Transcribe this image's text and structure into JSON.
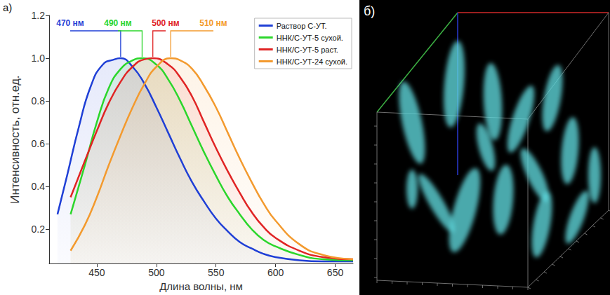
{
  "panel_labels": [
    "а)",
    "б)"
  ],
  "chart_data": {
    "type": "line",
    "x_label": "Длина волны, нм",
    "y_label": "Интенсивность, отн.ед.",
    "xlim": [
      410,
      665
    ],
    "ylim": [
      0.04,
      1.2
    ],
    "xticks": [
      450,
      500,
      550,
      600,
      650
    ],
    "yticks": [
      0.2,
      0.4,
      0.6,
      0.8,
      {
        "value": 1,
        "label": "1.0"
      },
      1.2
    ],
    "grid": false,
    "legend": "upper right",
    "series": [
      {
        "name": "Раствор С-УТ.",
        "color": "#1f3fd6",
        "peak_label": "470 нм",
        "x": [
          417,
          425,
          435,
          445,
          455,
          465,
          470,
          480,
          490,
          500,
          510,
          520,
          530,
          540,
          550,
          560,
          570,
          580,
          590,
          600,
          620,
          640,
          665
        ],
        "values": [
          0.27,
          0.45,
          0.68,
          0.87,
          0.97,
          0.995,
          1.0,
          0.96,
          0.88,
          0.77,
          0.65,
          0.53,
          0.42,
          0.33,
          0.25,
          0.19,
          0.14,
          0.11,
          0.085,
          0.07,
          0.055,
          0.05,
          0.05
        ]
      },
      {
        "name": "ННК/С-УТ-5 сухой.",
        "color": "#2bd62b",
        "peak_label": "490 нм",
        "x": [
          428,
          440,
          450,
          460,
          470,
          480,
          488,
          500,
          510,
          520,
          530,
          540,
          550,
          560,
          570,
          580,
          590,
          600,
          620,
          640,
          665
        ],
        "values": [
          0.27,
          0.5,
          0.7,
          0.86,
          0.95,
          0.99,
          1.0,
          0.97,
          0.9,
          0.8,
          0.68,
          0.56,
          0.45,
          0.35,
          0.27,
          0.2,
          0.15,
          0.12,
          0.08,
          0.06,
          0.055
        ]
      },
      {
        "name": "ННК/С-УТ-5 раст.",
        "color": "#e02424",
        "peak_label": "500 нм",
        "x": [
          428,
          440,
          450,
          460,
          470,
          480,
          490,
          497,
          510,
          520,
          530,
          540,
          550,
          560,
          570,
          580,
          590,
          600,
          620,
          640,
          665
        ],
        "values": [
          0.35,
          0.52,
          0.66,
          0.79,
          0.89,
          0.96,
          0.995,
          1.0,
          0.97,
          0.91,
          0.82,
          0.7,
          0.58,
          0.47,
          0.37,
          0.28,
          0.21,
          0.16,
          0.1,
          0.07,
          0.06
        ]
      },
      {
        "name": "ННК/С-УТ-24 сухой.",
        "color": "#f39a2e",
        "peak_label": "510 нм",
        "x": [
          428,
          440,
          450,
          460,
          470,
          480,
          490,
          500,
          512,
          520,
          530,
          540,
          550,
          560,
          570,
          580,
          590,
          600,
          620,
          640,
          665
        ],
        "values": [
          0.1,
          0.22,
          0.35,
          0.5,
          0.64,
          0.77,
          0.88,
          0.96,
          1.0,
          0.99,
          0.95,
          0.87,
          0.77,
          0.65,
          0.53,
          0.42,
          0.32,
          0.24,
          0.13,
          0.08,
          0.06
        ]
      }
    ]
  }
}
